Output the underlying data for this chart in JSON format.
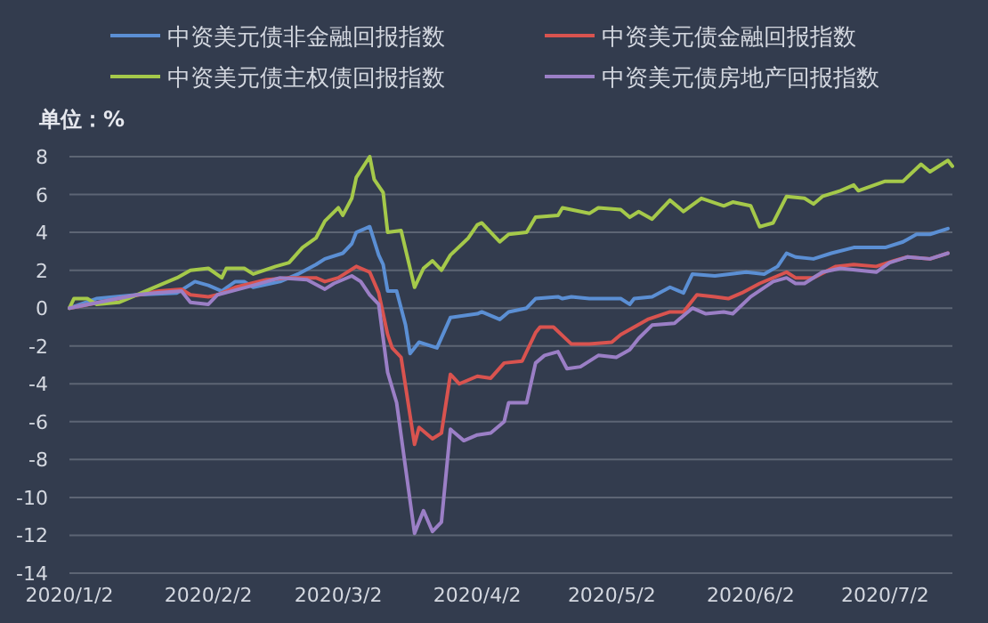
{
  "chart_data": {
    "type": "line",
    "ylabel": "单位：%",
    "legend": "top",
    "grid": "y",
    "xlim": [
      "2020-01-02",
      "2020-07-17"
    ],
    "xticks": [
      {
        "value": "2020-01-02",
        "label": "2020/1/2"
      },
      {
        "value": "2020-02-02",
        "label": "2020/2/2"
      },
      {
        "value": "2020-03-02",
        "label": "2020/3/2"
      },
      {
        "value": "2020-04-02",
        "label": "2020/4/2"
      },
      {
        "value": "2020-05-02",
        "label": "2020/5/2"
      },
      {
        "value": "2020-06-02",
        "label": "2020/6/2"
      },
      {
        "value": "2020-07-02",
        "label": "2020/7/2"
      }
    ],
    "ylim": [
      -14,
      8
    ],
    "yticks": [
      -14,
      -12,
      -10,
      -8,
      -6,
      -4,
      -2,
      0,
      2,
      4,
      6,
      8
    ],
    "series": [
      {
        "name": "中资美元债非金融回报指数",
        "color": "#5b8fd4",
        "x": [
          "2020-01-02",
          "2020-01-08",
          "2020-01-17",
          "2020-01-26",
          "2020-01-30",
          "2020-02-02",
          "2020-02-05",
          "2020-02-08",
          "2020-02-10",
          "2020-02-12",
          "2020-02-18",
          "2020-02-22",
          "2020-02-26",
          "2020-02-28",
          "2020-03-03",
          "2020-03-05",
          "2020-03-06",
          "2020-03-09",
          "2020-03-11",
          "2020-03-12",
          "2020-03-13",
          "2020-03-15",
          "2020-03-17",
          "2020-03-18",
          "2020-03-20",
          "2020-03-24",
          "2020-03-27",
          "2020-04-02",
          "2020-04-03",
          "2020-04-07",
          "2020-04-09",
          "2020-04-13",
          "2020-04-15",
          "2020-04-20",
          "2020-04-21",
          "2020-04-23",
          "2020-04-27",
          "2020-05-04",
          "2020-05-06",
          "2020-05-07",
          "2020-05-11",
          "2020-05-15",
          "2020-05-18",
          "2020-05-20",
          "2020-05-25",
          "2020-06-01",
          "2020-06-05",
          "2020-06-08",
          "2020-06-10",
          "2020-06-12",
          "2020-06-16",
          "2020-06-20",
          "2020-06-25",
          "2020-07-02",
          "2020-07-06",
          "2020-07-09",
          "2020-07-12",
          "2020-07-16"
        ],
        "values": [
          0,
          0.5,
          0.7,
          0.8,
          1.4,
          1.2,
          0.9,
          1.4,
          1.4,
          1.1,
          1.4,
          1.8,
          2.3,
          2.6,
          2.9,
          3.4,
          4.0,
          4.3,
          2.8,
          2.3,
          0.9,
          0.9,
          -0.9,
          -2.4,
          -1.8,
          -2.1,
          -0.5,
          -0.3,
          -0.2,
          -0.6,
          -0.2,
          0,
          0.5,
          0.6,
          0.5,
          0.6,
          0.5,
          0.5,
          0.2,
          0.5,
          0.6,
          1.1,
          0.8,
          1.8,
          1.7,
          1.9,
          1.8,
          2.2,
          2.9,
          2.7,
          2.6,
          2.9,
          3.2,
          3.2,
          3.5,
          3.9,
          3.9,
          4.2
        ]
      },
      {
        "name": "中资美元债金融回报指数",
        "color": "#d9534f",
        "x": [
          "2020-01-02",
          "2020-01-13",
          "2020-01-22",
          "2020-01-27",
          "2020-01-29",
          "2020-02-02",
          "2020-02-04",
          "2020-02-08",
          "2020-02-15",
          "2020-02-20",
          "2020-02-26",
          "2020-02-28",
          "2020-03-02",
          "2020-03-06",
          "2020-03-09",
          "2020-03-11",
          "2020-03-13",
          "2020-03-14",
          "2020-03-16",
          "2020-03-19",
          "2020-03-20",
          "2020-03-23",
          "2020-03-25",
          "2020-03-27",
          "2020-03-29",
          "2020-04-02",
          "2020-04-05",
          "2020-04-08",
          "2020-04-12",
          "2020-04-15",
          "2020-04-16",
          "2020-04-19",
          "2020-04-23",
          "2020-04-27",
          "2020-05-02",
          "2020-05-04",
          "2020-05-10",
          "2020-05-15",
          "2020-05-18",
          "2020-05-21",
          "2020-05-25",
          "2020-05-28",
          "2020-05-31",
          "2020-06-04",
          "2020-06-08",
          "2020-06-10",
          "2020-06-12",
          "2020-06-16",
          "2020-06-21",
          "2020-06-25",
          "2020-06-30",
          "2020-07-04",
          "2020-07-07",
          "2020-07-12",
          "2020-07-16"
        ],
        "values": [
          0,
          0.5,
          0.9,
          1.0,
          0.7,
          0.6,
          0.7,
          1.1,
          1.5,
          1.6,
          1.6,
          1.4,
          1.6,
          2.2,
          1.9,
          0.8,
          -1.4,
          -2.1,
          -2.6,
          -7.2,
          -6.3,
          -6.9,
          -6.6,
          -3.5,
          -4.0,
          -3.6,
          -3.7,
          -2.9,
          -2.8,
          -1.3,
          -1.0,
          -1.0,
          -1.9,
          -1.9,
          -1.8,
          -1.4,
          -0.6,
          -0.2,
          -0.2,
          0.7,
          0.6,
          0.5,
          0.8,
          1.3,
          1.7,
          1.9,
          1.6,
          1.6,
          2.2,
          2.3,
          2.2,
          2.5,
          2.7,
          2.6,
          2.9
        ]
      },
      {
        "name": "中资美元债主权债回报指数",
        "color": "#a5c94a",
        "x": [
          "2020-01-02",
          "2020-01-03",
          "2020-01-06",
          "2020-01-08",
          "2020-01-13",
          "2020-01-17",
          "2020-01-22",
          "2020-01-26",
          "2020-01-29",
          "2020-02-02",
          "2020-02-05",
          "2020-02-06",
          "2020-02-10",
          "2020-02-12",
          "2020-02-17",
          "2020-02-20",
          "2020-02-23",
          "2020-02-26",
          "2020-02-28",
          "2020-03-02",
          "2020-03-03",
          "2020-03-05",
          "2020-03-06",
          "2020-03-09",
          "2020-03-10",
          "2020-03-12",
          "2020-03-13",
          "2020-03-16",
          "2020-03-19",
          "2020-03-21",
          "2020-03-23",
          "2020-03-25",
          "2020-03-27",
          "2020-03-31",
          "2020-04-02",
          "2020-04-03",
          "2020-04-05",
          "2020-04-07",
          "2020-04-09",
          "2020-04-13",
          "2020-04-15",
          "2020-04-20",
          "2020-04-21",
          "2020-04-27",
          "2020-04-29",
          "2020-05-04",
          "2020-05-06",
          "2020-05-08",
          "2020-05-11",
          "2020-05-15",
          "2020-05-18",
          "2020-05-22",
          "2020-05-27",
          "2020-05-29",
          "2020-06-02",
          "2020-06-04",
          "2020-06-07",
          "2020-06-10",
          "2020-06-14",
          "2020-06-16",
          "2020-06-18",
          "2020-06-22",
          "2020-06-25",
          "2020-06-26",
          "2020-07-02",
          "2020-07-06",
          "2020-07-10",
          "2020-07-12",
          "2020-07-16",
          "2020-07-17"
        ],
        "values": [
          0,
          0.5,
          0.5,
          0.2,
          0.3,
          0.7,
          1.2,
          1.6,
          2.0,
          2.1,
          1.6,
          2.1,
          2.1,
          1.8,
          2.2,
          2.4,
          3.2,
          3.7,
          4.6,
          5.3,
          4.9,
          5.8,
          6.9,
          8.0,
          6.8,
          6.1,
          4.0,
          4.1,
          1.1,
          2.1,
          2.5,
          2.0,
          2.8,
          3.7,
          4.4,
          4.5,
          4.0,
          3.5,
          3.9,
          4.0,
          4.8,
          4.9,
          5.3,
          5.0,
          5.3,
          5.2,
          4.8,
          5.1,
          4.7,
          5.7,
          5.1,
          5.8,
          5.4,
          5.6,
          5.4,
          4.3,
          4.5,
          5.9,
          5.8,
          5.5,
          5.9,
          6.2,
          6.5,
          6.2,
          6.7,
          6.7,
          7.6,
          7.2,
          7.8,
          7.5
        ]
      },
      {
        "name": "中资美元债房地产回报指数",
        "color": "#9b7fc6",
        "x": [
          "2020-01-02",
          "2020-01-17",
          "2020-01-21",
          "2020-01-27",
          "2020-01-29",
          "2020-02-02",
          "2020-02-04",
          "2020-02-12",
          "2020-02-18",
          "2020-02-24",
          "2020-02-28",
          "2020-03-01",
          "2020-03-05",
          "2020-03-07",
          "2020-03-09",
          "2020-03-11",
          "2020-03-13",
          "2020-03-15",
          "2020-03-19",
          "2020-03-21",
          "2020-03-23",
          "2020-03-25",
          "2020-03-27",
          "2020-03-30",
          "2020-04-02",
          "2020-04-05",
          "2020-04-08",
          "2020-04-09",
          "2020-04-13",
          "2020-04-15",
          "2020-04-17",
          "2020-04-20",
          "2020-04-22",
          "2020-04-25",
          "2020-04-29",
          "2020-05-03",
          "2020-05-06",
          "2020-05-08",
          "2020-05-11",
          "2020-05-16",
          "2020-05-20",
          "2020-05-23",
          "2020-05-27",
          "2020-05-29",
          "2020-06-02",
          "2020-06-07",
          "2020-06-10",
          "2020-06-12",
          "2020-06-14",
          "2020-06-18",
          "2020-06-22",
          "2020-06-30",
          "2020-07-03",
          "2020-07-07",
          "2020-07-12",
          "2020-07-16"
        ],
        "values": [
          0,
          0.7,
          0.8,
          0.9,
          0.3,
          0.2,
          0.7,
          1.2,
          1.6,
          1.5,
          1.0,
          1.3,
          1.7,
          1.4,
          0.7,
          0.2,
          -3.4,
          -5.0,
          -11.9,
          -10.7,
          -11.8,
          -11.3,
          -6.4,
          -7.0,
          -6.7,
          -6.6,
          -6.0,
          -5.0,
          -5.0,
          -2.9,
          -2.5,
          -2.3,
          -3.2,
          -3.1,
          -2.5,
          -2.6,
          -2.2,
          -1.6,
          -0.9,
          -0.8,
          0,
          -0.3,
          -0.2,
          -0.3,
          0.6,
          1.4,
          1.6,
          1.3,
          1.3,
          1.9,
          2.1,
          1.9,
          2.4,
          2.7,
          2.6,
          2.9
        ]
      }
    ]
  }
}
